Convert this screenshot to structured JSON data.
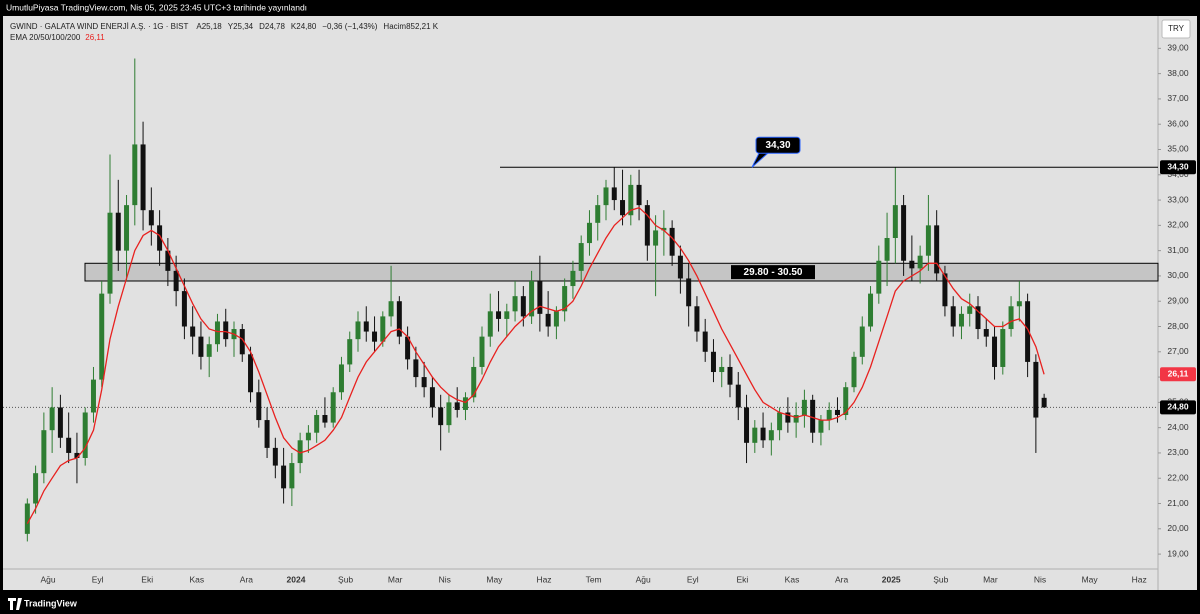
{
  "header": {
    "title": "UmutluPiyasa TradingView.com, Nis 05, 2025 23:45 UTC+3 tarihinde yayınlandı"
  },
  "chart_data": {
    "type": "candlestick",
    "symbol": "GWIND · GALATA WIND ENERJİ A.Ş. · 1G · BIST",
    "quote": [
      "A25,18",
      "Y25,34",
      "D24,78",
      "K24,80",
      "−0,36 (−1,43%)",
      "Hacim852,21 K"
    ],
    "indicator": "EMA 20/50/100/200",
    "indicator_value": {
      "value": 26.11,
      "label": "26,11"
    },
    "currency": "TRY",
    "up_color": "#2e7d32",
    "down_color": "#111111",
    "ema_color": "#e8211f",
    "ylim": [
      18.45,
      40.2
    ],
    "yticks": [
      {
        "value": 19,
        "label": "19,00"
      },
      {
        "value": 20,
        "label": "20,00"
      },
      {
        "value": 21,
        "label": "21,00"
      },
      {
        "value": 22,
        "label": "22,00"
      },
      {
        "value": 23,
        "label": "23,00"
      },
      {
        "value": 24,
        "label": "24,00"
      },
      {
        "value": 25,
        "label": "25,00"
      },
      {
        "value": 26,
        "label": "26,00"
      },
      {
        "value": 27,
        "label": "27,00"
      },
      {
        "value": 28,
        "label": "28,00"
      },
      {
        "value": 29,
        "label": "29,00"
      },
      {
        "value": 30,
        "label": "30,00"
      },
      {
        "value": 31,
        "label": "31,00"
      },
      {
        "value": 32,
        "label": "32,00"
      },
      {
        "value": 33,
        "label": "33,00"
      },
      {
        "value": 34,
        "label": "34,00"
      },
      {
        "value": 35,
        "label": "35,00"
      },
      {
        "value": 36,
        "label": "36,00"
      },
      {
        "value": 37,
        "label": "37,00"
      },
      {
        "value": 38,
        "label": "38,00"
      },
      {
        "value": 39,
        "label": "39,00"
      }
    ],
    "months": [
      {
        "label": null,
        "candles": [
          [
            19.8,
            21.2,
            19.5,
            21.0
          ],
          [
            21.0,
            22.5,
            20.6,
            22.2
          ],
          [
            22.2,
            24.6,
            21.8,
            23.9
          ]
        ],
        "ema": [
          20.2,
          20.8,
          21.5
        ]
      },
      {
        "label": "Ağu",
        "candles": [
          [
            23.9,
            25.6,
            23.0,
            24.8
          ],
          [
            24.8,
            25.3,
            23.2,
            23.6
          ],
          [
            23.6,
            24.6,
            22.6,
            23.0
          ],
          [
            23.0,
            23.8,
            21.8,
            22.8
          ],
          [
            22.8,
            24.8,
            22.5,
            24.6
          ],
          [
            24.6,
            26.4,
            24.2,
            25.9
          ]
        ],
        "ema": [
          22.0,
          22.5,
          22.7,
          22.8,
          23.2,
          23.9
        ]
      },
      {
        "label": "Eyl",
        "candles": [
          [
            25.9,
            29.8,
            25.6,
            29.3
          ],
          [
            29.3,
            34.8,
            28.9,
            32.5
          ],
          [
            32.5,
            33.8,
            30.2,
            31.0
          ],
          [
            31.0,
            33.2,
            29.8,
            32.8
          ],
          [
            32.8,
            38.6,
            32.0,
            35.2
          ],
          [
            35.2,
            36.1,
            31.8,
            32.6
          ]
        ],
        "ema": [
          25.5,
          27.5,
          28.8,
          29.9,
          31.0,
          31.6
        ]
      },
      {
        "label": "Eki",
        "candles": [
          [
            32.6,
            33.5,
            31.2,
            32.0
          ],
          [
            32.0,
            32.6,
            30.4,
            31.0
          ],
          [
            31.0,
            31.5,
            29.6,
            30.2
          ],
          [
            30.2,
            30.8,
            28.8,
            29.4
          ],
          [
            29.4,
            29.9,
            27.5,
            28.0
          ],
          [
            28.0,
            28.8,
            26.9,
            27.6
          ]
        ],
        "ema": [
          31.8,
          31.6,
          31.0,
          30.3,
          29.6,
          28.9
        ]
      },
      {
        "label": "Kas",
        "candles": [
          [
            27.6,
            28.2,
            26.3,
            26.8
          ],
          [
            26.8,
            27.6,
            26.0,
            27.3
          ],
          [
            27.3,
            28.5,
            27.0,
            28.2
          ],
          [
            28.2,
            28.7,
            27.2,
            27.5
          ],
          [
            27.5,
            28.2,
            26.8,
            27.9
          ],
          [
            27.9,
            28.1,
            26.6,
            26.9
          ]
        ],
        "ema": [
          28.3,
          27.9,
          27.8,
          27.8,
          27.7,
          27.5
        ]
      },
      {
        "label": "Ara",
        "candles": [
          [
            26.9,
            27.2,
            25.0,
            25.4
          ],
          [
            25.4,
            25.9,
            24.0,
            24.3
          ],
          [
            24.3,
            24.8,
            22.8,
            23.2
          ],
          [
            23.2,
            23.6,
            22.0,
            22.5
          ],
          [
            22.5,
            23.2,
            21.0,
            21.6
          ],
          [
            21.6,
            23.0,
            20.9,
            22.6
          ]
        ],
        "ema": [
          27.0,
          26.2,
          25.3,
          24.4,
          23.6,
          23.2
        ]
      },
      {
        "label": "2024",
        "candles": [
          [
            22.6,
            23.8,
            22.2,
            23.5
          ],
          [
            23.5,
            24.1,
            23.0,
            23.8
          ],
          [
            23.8,
            24.7,
            23.4,
            24.5
          ],
          [
            24.5,
            25.2,
            24.0,
            24.2
          ],
          [
            24.2,
            25.6,
            24.0,
            25.4
          ],
          [
            25.4,
            26.8,
            25.1,
            26.5
          ]
        ],
        "ema": [
          23.0,
          23.1,
          23.3,
          23.5,
          23.9,
          24.4
        ]
      },
      {
        "label": "Şub",
        "candles": [
          [
            26.5,
            27.8,
            26.2,
            27.5
          ],
          [
            27.5,
            28.6,
            27.0,
            28.2
          ],
          [
            28.2,
            28.8,
            27.4,
            27.8
          ],
          [
            27.8,
            28.4,
            27.0,
            27.4
          ],
          [
            27.4,
            28.6,
            27.2,
            28.4
          ],
          [
            28.4,
            30.4,
            28.0,
            29.0
          ]
        ],
        "ema": [
          25.2,
          26.0,
          26.6,
          27.0,
          27.4,
          27.8
        ]
      },
      {
        "label": "Mar",
        "candles": [
          [
            29.0,
            29.2,
            27.3,
            27.6
          ],
          [
            27.6,
            28.0,
            26.3,
            26.7
          ],
          [
            26.7,
            27.2,
            25.6,
            26.0
          ],
          [
            26.0,
            26.6,
            25.2,
            25.6
          ],
          [
            25.6,
            26.0,
            24.4,
            24.8
          ],
          [
            24.8,
            25.3,
            23.1,
            24.1
          ]
        ],
        "ema": [
          27.9,
          27.6,
          27.0,
          26.5,
          26.0,
          25.6
        ]
      },
      {
        "label": "Nis",
        "candles": [
          [
            24.1,
            25.3,
            23.8,
            25.0
          ],
          [
            25.0,
            25.6,
            24.4,
            24.7
          ],
          [
            24.7,
            25.4,
            24.3,
            25.2
          ],
          [
            25.2,
            26.8,
            25.0,
            26.4
          ],
          [
            26.4,
            28.0,
            26.1,
            27.6
          ],
          [
            27.6,
            29.3,
            27.2,
            28.6
          ]
        ],
        "ema": [
          25.3,
          25.1,
          25.0,
          25.3,
          25.9,
          26.6
        ]
      },
      {
        "label": "May",
        "candles": [
          [
            28.6,
            29.4,
            27.8,
            28.3
          ],
          [
            28.3,
            28.9,
            27.6,
            28.6
          ],
          [
            28.6,
            29.8,
            28.2,
            29.2
          ],
          [
            29.2,
            29.6,
            28.0,
            28.4
          ],
          [
            28.4,
            30.2,
            28.1,
            29.8
          ],
          [
            29.8,
            30.8,
            27.8,
            28.5
          ]
        ],
        "ema": [
          27.2,
          27.6,
          28.0,
          28.3,
          28.6,
          28.8
        ]
      },
      {
        "label": "Haz",
        "candles": [
          [
            28.5,
            29.4,
            27.6,
            28.0
          ],
          [
            28.0,
            28.8,
            27.5,
            28.6
          ],
          [
            28.6,
            29.9,
            28.2,
            29.6
          ],
          [
            29.6,
            30.6,
            29.1,
            30.2
          ],
          [
            30.2,
            31.6,
            29.8,
            31.3
          ],
          [
            31.3,
            32.6,
            30.8,
            32.1
          ]
        ],
        "ema": [
          28.7,
          28.6,
          28.7,
          29.0,
          29.6,
          30.3
        ]
      },
      {
        "label": "Tem",
        "candles": [
          [
            32.1,
            33.2,
            31.4,
            32.8
          ],
          [
            32.8,
            33.8,
            32.2,
            33.5
          ],
          [
            33.5,
            34.3,
            32.6,
            33.0
          ],
          [
            33.0,
            34.2,
            32.0,
            32.4
          ],
          [
            32.4,
            34.0,
            32.0,
            33.6
          ],
          [
            33.6,
            34.2,
            32.2,
            32.8
          ]
        ],
        "ema": [
          30.9,
          31.5,
          32.0,
          32.3,
          32.6,
          32.7
        ]
      },
      {
        "label": "Ağu",
        "candles": [
          [
            32.8,
            33.0,
            30.6,
            31.2
          ],
          [
            31.2,
            32.4,
            29.2,
            31.8
          ],
          [
            31.8,
            32.6,
            30.8,
            31.9
          ],
          [
            31.9,
            32.2,
            30.4,
            30.8
          ],
          [
            30.8,
            31.2,
            29.3,
            29.9
          ],
          [
            29.9,
            30.5,
            28.0,
            28.8
          ]
        ],
        "ema": [
          32.4,
          32.0,
          31.8,
          31.5,
          31.1,
          30.6
        ]
      },
      {
        "label": "Eyl",
        "candles": [
          [
            28.8,
            29.2,
            27.4,
            27.8
          ],
          [
            27.8,
            28.3,
            26.6,
            27.0
          ],
          [
            27.0,
            27.5,
            25.8,
            26.2
          ],
          [
            26.2,
            26.8,
            25.6,
            26.4
          ],
          [
            26.4,
            26.9,
            25.2,
            25.7
          ],
          [
            25.7,
            26.2,
            24.3,
            24.8
          ]
        ],
        "ema": [
          30.0,
          29.3,
          28.6,
          27.9,
          27.3,
          26.7
        ]
      },
      {
        "label": "Eki",
        "candles": [
          [
            24.8,
            25.3,
            22.6,
            23.4
          ],
          [
            23.4,
            24.3,
            23.0,
            24.0
          ],
          [
            24.0,
            24.6,
            23.2,
            23.5
          ],
          [
            23.5,
            24.2,
            22.9,
            23.9
          ],
          [
            23.9,
            24.8,
            23.5,
            24.6
          ],
          [
            24.6,
            25.2,
            23.8,
            24.2
          ]
        ],
        "ema": [
          26.1,
          25.5,
          25.0,
          24.8,
          24.6,
          24.5
        ]
      },
      {
        "label": "Kas",
        "candles": [
          [
            24.2,
            25.0,
            23.6,
            24.5
          ],
          [
            24.5,
            25.5,
            24.0,
            25.1
          ],
          [
            25.1,
            25.3,
            23.4,
            23.8
          ],
          [
            23.8,
            24.5,
            23.3,
            24.3
          ],
          [
            24.3,
            25.0,
            23.9,
            24.7
          ],
          [
            24.7,
            25.2,
            24.2,
            24.5
          ]
        ],
        "ema": [
          24.4,
          24.5,
          24.4,
          24.3,
          24.3,
          24.4
        ]
      },
      {
        "label": "Ara",
        "candles": [
          [
            24.5,
            25.8,
            24.3,
            25.6
          ],
          [
            25.6,
            27.0,
            25.4,
            26.8
          ],
          [
            26.8,
            28.4,
            26.5,
            28.0
          ],
          [
            28.0,
            29.6,
            27.8,
            29.3
          ],
          [
            29.3,
            31.2,
            28.9,
            30.6
          ],
          [
            30.6,
            32.5,
            29.6,
            31.5
          ]
        ],
        "ema": [
          24.6,
          25.0,
          25.6,
          26.4,
          27.4,
          28.4
        ]
      },
      {
        "label": "2025",
        "candles": [
          [
            31.5,
            34.3,
            30.5,
            32.8
          ],
          [
            32.8,
            33.2,
            30.0,
            30.6
          ],
          [
            30.6,
            31.6,
            29.8,
            30.3
          ],
          [
            30.3,
            31.2,
            29.7,
            30.8
          ],
          [
            30.8,
            33.2,
            30.2,
            32.0
          ],
          [
            32.0,
            32.6,
            29.8,
            30.1
          ]
        ],
        "ema": [
          29.4,
          29.8,
          30.0,
          30.2,
          30.5,
          30.5
        ]
      },
      {
        "label": "Şub",
        "candles": [
          [
            30.1,
            30.4,
            28.4,
            28.8
          ],
          [
            28.8,
            29.2,
            27.6,
            28.0
          ],
          [
            28.0,
            28.8,
            27.5,
            28.5
          ],
          [
            28.5,
            29.3,
            28.0,
            28.8
          ],
          [
            28.8,
            29.2,
            27.5,
            27.9
          ],
          [
            27.9,
            28.3,
            27.2,
            27.6
          ]
        ],
        "ema": [
          30.0,
          29.5,
          29.1,
          28.9,
          28.6,
          28.3
        ]
      },
      {
        "label": "Mar",
        "candles": [
          [
            27.6,
            28.0,
            25.9,
            26.4
          ],
          [
            26.4,
            28.2,
            26.1,
            27.9
          ],
          [
            27.9,
            29.2,
            27.6,
            28.8
          ],
          [
            28.8,
            29.8,
            28.2,
            29.0
          ],
          [
            29.0,
            29.3,
            26.0,
            26.6
          ],
          [
            26.6,
            26.9,
            23.0,
            24.4
          ]
        ],
        "ema": [
          28.0,
          28.0,
          28.2,
          28.3,
          27.9,
          27.2
        ]
      },
      {
        "label": "Nis",
        "candles": [
          [
            25.18,
            25.34,
            24.78,
            24.8
          ]
        ],
        "ema": [
          26.11
        ]
      },
      {
        "label": "May",
        "candles": [],
        "ema": []
      },
      {
        "label": "Haz",
        "candles": [],
        "ema": []
      }
    ],
    "annotations": {
      "level": {
        "value": 34.3,
        "label": "34,30"
      },
      "zone": {
        "low": 29.8,
        "high": 30.5,
        "label": "29.80 - 30.50"
      }
    },
    "price_labels": [
      {
        "value": 34.3,
        "label": "34,30",
        "color": "#000000"
      },
      {
        "value": 26.11,
        "label": "26,11",
        "color": "#f23645"
      },
      {
        "value": 24.8,
        "label": "24,80",
        "color": "#000000"
      }
    ]
  },
  "footer": {
    "brand": "TradingView"
  }
}
